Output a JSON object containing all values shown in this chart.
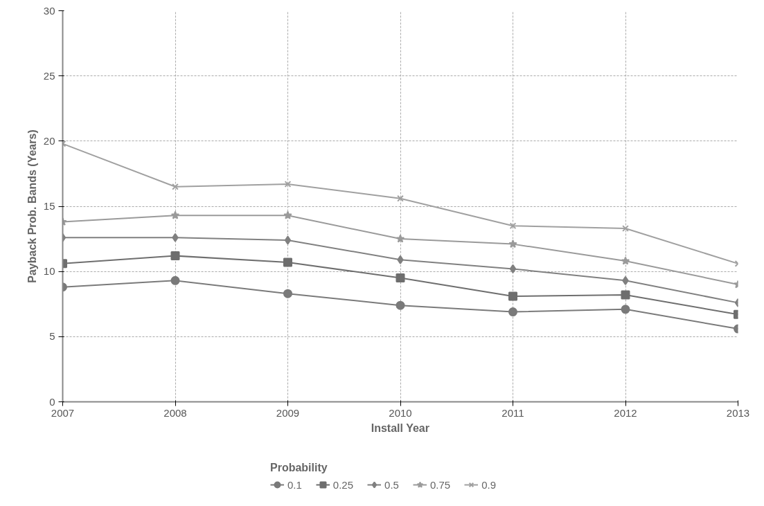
{
  "chart_data": {
    "type": "line",
    "xlabel": "Install Year",
    "ylabel": "Payback Prob. Bands (Years)",
    "legend_title": "Probability",
    "x": [
      2007,
      2008,
      2009,
      2010,
      2011,
      2012,
      2013
    ],
    "xlim": [
      2007,
      2013
    ],
    "xticks": [
      2007,
      2008,
      2009,
      2010,
      2011,
      2012,
      2013
    ],
    "ylim": [
      0,
      30
    ],
    "yticks": [
      0,
      5,
      10,
      15,
      20,
      25,
      30
    ],
    "grid": true,
    "legend": "bottom",
    "series": [
      {
        "name": "0.1",
        "color": "#7a7a7a",
        "marker": "circle",
        "values": [
          8.8,
          9.3,
          8.3,
          7.4,
          6.9,
          7.1,
          5.6
        ]
      },
      {
        "name": "0.25",
        "color": "#6e6e6e",
        "marker": "square",
        "values": [
          10.6,
          11.2,
          10.7,
          9.5,
          8.1,
          8.2,
          6.7
        ]
      },
      {
        "name": "0.5",
        "color": "#808080",
        "marker": "diamond",
        "values": [
          12.6,
          12.6,
          12.4,
          10.9,
          10.2,
          9.3,
          7.6
        ]
      },
      {
        "name": "0.75",
        "color": "#9a9a9a",
        "marker": "star",
        "values": [
          13.8,
          14.3,
          14.3,
          12.5,
          12.1,
          10.8,
          9.0
        ]
      },
      {
        "name": "0.9",
        "color": "#a0a0a0",
        "marker": "cross",
        "values": [
          19.8,
          16.5,
          16.7,
          15.6,
          13.5,
          13.3,
          10.6
        ]
      }
    ]
  }
}
